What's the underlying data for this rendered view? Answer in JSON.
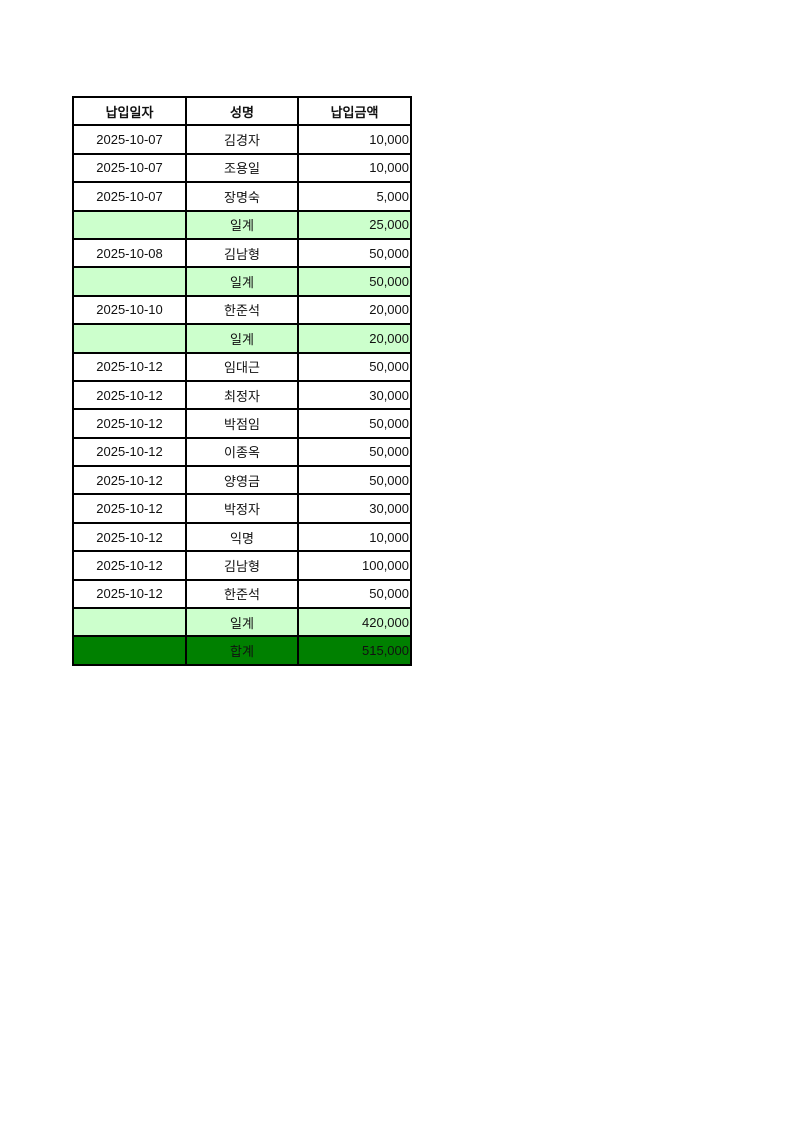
{
  "headers": {
    "date": "납입일자",
    "name": "성명",
    "amount": "납입금액"
  },
  "rows": [
    {
      "type": "entry",
      "date": "2025-10-07",
      "name": "김경자",
      "amount": "10,000"
    },
    {
      "type": "entry",
      "date": "2025-10-07",
      "name": "조용일",
      "amount": "10,000"
    },
    {
      "type": "entry",
      "date": "2025-10-07",
      "name": "장명숙",
      "amount": "5,000"
    },
    {
      "type": "sub",
      "date": "",
      "name": "일계",
      "amount": "25,000"
    },
    {
      "type": "entry",
      "date": "2025-10-08",
      "name": "김남형",
      "amount": "50,000"
    },
    {
      "type": "sub",
      "date": "",
      "name": "일계",
      "amount": "50,000"
    },
    {
      "type": "entry",
      "date": "2025-10-10",
      "name": "한준석",
      "amount": "20,000"
    },
    {
      "type": "sub",
      "date": "",
      "name": "일계",
      "amount": "20,000"
    },
    {
      "type": "entry",
      "date": "2025-10-12",
      "name": "임대근",
      "amount": "50,000"
    },
    {
      "type": "entry",
      "date": "2025-10-12",
      "name": "최정자",
      "amount": "30,000"
    },
    {
      "type": "entry",
      "date": "2025-10-12",
      "name": "박점임",
      "amount": "50,000"
    },
    {
      "type": "entry",
      "date": "2025-10-12",
      "name": "이종옥",
      "amount": "50,000"
    },
    {
      "type": "entry",
      "date": "2025-10-12",
      "name": "양영금",
      "amount": "50,000"
    },
    {
      "type": "entry",
      "date": "2025-10-12",
      "name": "박정자",
      "amount": "30,000"
    },
    {
      "type": "entry",
      "date": "2025-10-12",
      "name": "익명",
      "amount": "10,000"
    },
    {
      "type": "entry",
      "date": "2025-10-12",
      "name": "김남형",
      "amount": "100,000"
    },
    {
      "type": "entry",
      "date": "2025-10-12",
      "name": "한준석",
      "amount": "50,000"
    },
    {
      "type": "sub",
      "date": "",
      "name": "일계",
      "amount": "420,000"
    },
    {
      "type": "total",
      "date": "",
      "name": "합계",
      "amount": "515,000"
    }
  ],
  "colors": {
    "subtotal_bg": "#ccffcc",
    "total_bg": "#008000"
  }
}
